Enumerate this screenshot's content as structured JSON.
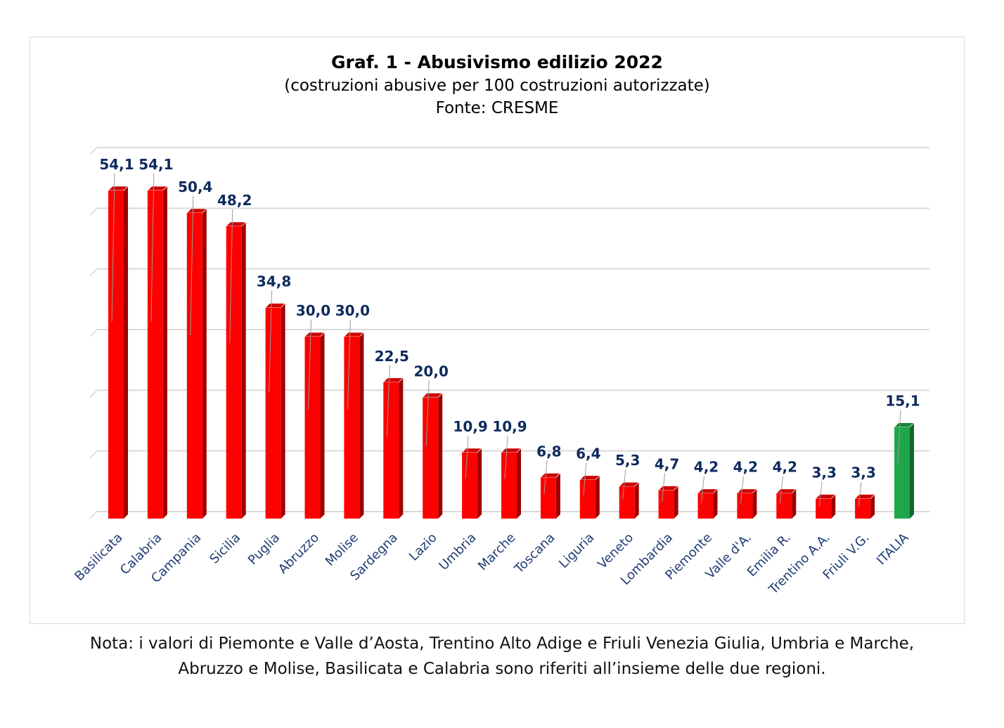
{
  "chart_data": {
    "type": "bar",
    "title": "Graf. 1 - Abusivismo edilizio 2022",
    "subtitle": "(costruzioni abusive per 100 costruzioni autorizzate)",
    "source": "Fonte: CRESME",
    "categories": [
      "Basilicata",
      "Calabria",
      "Campania",
      "Sicilia",
      "Puglia",
      "Abruzzo",
      "Molise",
      "Sardegna",
      "Lazio",
      "Umbria",
      "Marche",
      "Toscana",
      "Liguria",
      "Veneto",
      "Lombardia",
      "Piemonte",
      "Valle d'A.",
      "Emilia R.",
      "Trentino A.A.",
      "Friuli V.G.",
      "ITALIA"
    ],
    "values": [
      54.1,
      54.1,
      50.4,
      48.2,
      34.8,
      30.0,
      30.0,
      22.5,
      20.0,
      10.9,
      10.9,
      6.8,
      6.4,
      5.3,
      4.7,
      4.2,
      4.2,
      4.2,
      3.3,
      3.3,
      15.1
    ],
    "value_labels": [
      "54,1",
      "54,1",
      "50,4",
      "48,2",
      "34,8",
      "30,0",
      "30,0",
      "22,5",
      "20,0",
      "10,9",
      "10,9",
      "6,8",
      "6,4",
      "5,3",
      "4,7",
      "4,2",
      "4,2",
      "4,2",
      "3,3",
      "3,3",
      "15,1"
    ],
    "ylim": [
      0,
      60
    ],
    "grid": true,
    "colors": {
      "bar": "#ff0000",
      "highlight": "#1fa64a",
      "label": "#0d2a5c",
      "axis_text": "#1f3c74",
      "grid": "#d9d9d9"
    },
    "highlight_index": 20
  },
  "note": {
    "line1": "Nota: i valori di Piemonte e Valle d’Aosta, Trentino Alto Adige e Friuli Venezia Giulia, Umbria e Marche,",
    "line2": "Abruzzo e Molise, Basilicata e Calabria sono riferiti all’insieme delle due regioni."
  }
}
